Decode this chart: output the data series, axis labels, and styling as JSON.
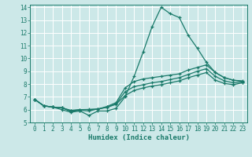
{
  "bg_color": "#cce8e8",
  "grid_major_color": "#ffffff",
  "grid_minor_color": "#ddeaea",
  "line_color": "#1a7a6a",
  "xlabel": "Humidex (Indice chaleur)",
  "xlim": [
    -0.5,
    23.5
  ],
  "ylim": [
    5,
    14.2
  ],
  "yticks": [
    5,
    6,
    7,
    8,
    9,
    10,
    11,
    12,
    13,
    14
  ],
  "xticks": [
    0,
    1,
    2,
    3,
    4,
    5,
    6,
    7,
    8,
    9,
    10,
    11,
    12,
    13,
    14,
    15,
    16,
    17,
    18,
    19,
    20,
    21,
    22,
    23
  ],
  "line1_x": [
    0,
    1,
    2,
    3,
    4,
    5,
    6,
    7,
    8,
    9,
    10,
    11,
    12,
    13,
    14,
    15,
    16,
    17,
    18,
    19,
    20,
    21,
    22,
    23
  ],
  "line1_y": [
    6.8,
    6.3,
    6.2,
    6.0,
    5.8,
    5.9,
    5.55,
    5.9,
    5.9,
    6.1,
    7.0,
    8.6,
    10.5,
    12.5,
    14.0,
    13.5,
    13.2,
    11.8,
    10.8,
    9.7,
    8.9,
    8.5,
    8.3,
    8.2
  ],
  "line2_x": [
    0,
    1,
    2,
    3,
    4,
    5,
    6,
    7,
    8,
    9,
    10,
    11,
    12,
    13,
    14,
    15,
    16,
    17,
    18,
    19,
    20,
    21,
    22,
    23
  ],
  "line2_y": [
    6.8,
    6.3,
    6.2,
    6.15,
    5.85,
    5.95,
    5.9,
    6.05,
    6.25,
    6.55,
    7.7,
    8.2,
    8.4,
    8.5,
    8.6,
    8.7,
    8.8,
    9.1,
    9.3,
    9.5,
    8.9,
    8.5,
    8.3,
    8.25
  ],
  "line3_x": [
    0,
    1,
    2,
    3,
    4,
    5,
    6,
    7,
    8,
    9,
    10,
    11,
    12,
    13,
    14,
    15,
    16,
    17,
    18,
    19,
    20,
    21,
    22,
    23
  ],
  "line3_y": [
    6.8,
    6.3,
    6.2,
    6.15,
    5.9,
    6.0,
    6.0,
    6.05,
    6.2,
    6.45,
    7.4,
    7.8,
    7.95,
    8.1,
    8.2,
    8.35,
    8.5,
    8.75,
    9.0,
    9.2,
    8.6,
    8.25,
    8.1,
    8.15
  ],
  "line4_x": [
    0,
    1,
    2,
    3,
    4,
    5,
    6,
    7,
    8,
    9,
    10,
    11,
    12,
    13,
    14,
    15,
    16,
    17,
    18,
    19,
    20,
    21,
    22,
    23
  ],
  "line4_y": [
    6.8,
    6.3,
    6.2,
    6.15,
    5.95,
    6.0,
    6.02,
    6.05,
    6.18,
    6.42,
    7.1,
    7.5,
    7.7,
    7.85,
    7.95,
    8.1,
    8.25,
    8.5,
    8.7,
    8.9,
    8.3,
    8.05,
    7.95,
    8.1
  ],
  "tick_fontsize": 5.5,
  "xlabel_fontsize": 6.5
}
